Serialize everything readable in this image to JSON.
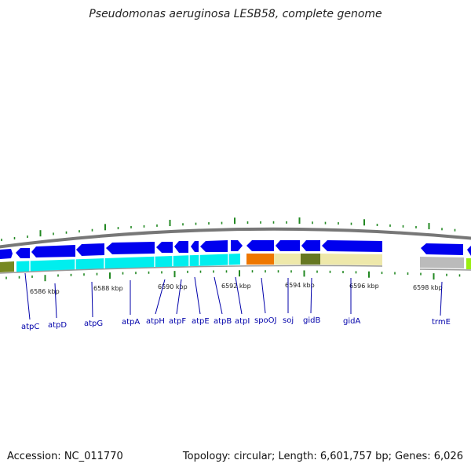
{
  "title": "Pseudomonas aeruginosa LESB58, complete genome",
  "accession_text": "Accession: NC_011770",
  "topology_text": "Topology: circular; Length: 6,601,757 bp; Genes: 6,026",
  "colors": {
    "gene_arrow": "#0000ee",
    "atp_operon": "#00eeee",
    "par_category": "#ee7700",
    "gid_category": "#eee8aa",
    "gid_dark": "#667722",
    "trmE_category": "#bbbbbb",
    "olive": "#778822",
    "lime": "#99ee11",
    "ticks": "#228822",
    "backbone": "#777777",
    "label_lines": "#0000aa"
  },
  "ticks": [
    {
      "label": "6586 kbp"
    },
    {
      "label": "6588 kbp"
    },
    {
      "label": "6590 kbp"
    },
    {
      "label": "6592 kbp"
    },
    {
      "label": "6594 kbp"
    },
    {
      "label": "6596 kbp"
    },
    {
      "label": "6598 kbp"
    }
  ],
  "genes": [
    {
      "name": "atpC"
    },
    {
      "name": "atpD"
    },
    {
      "name": "atpG"
    },
    {
      "name": "atpA"
    },
    {
      "name": "atpH"
    },
    {
      "name": "atpF"
    },
    {
      "name": "atpE"
    },
    {
      "name": "atpB"
    },
    {
      "name": "atpI"
    },
    {
      "name": "spoOJ"
    },
    {
      "name": "soj"
    },
    {
      "name": "gidB"
    },
    {
      "name": "gidA"
    },
    {
      "name": "trmE"
    }
  ]
}
